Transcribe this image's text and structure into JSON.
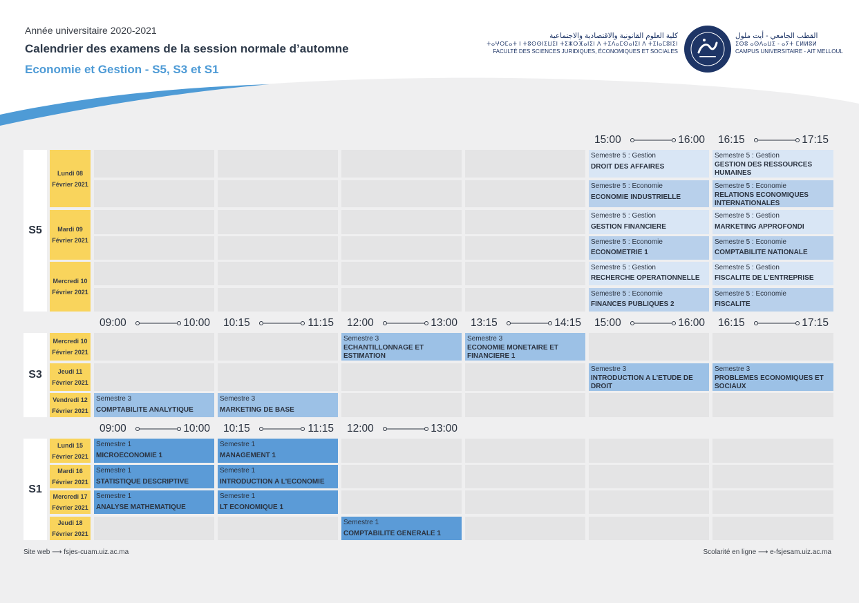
{
  "header": {
    "year": "Année universitaire 2020-2021",
    "title": "Calendrier des examens de la session normale d’automne",
    "subtitle": "Economie et Gestion - S5, S3 et S1"
  },
  "logo": {
    "faculty_ar": "كلية العلوم القانونية والاقتصادية والاجتماعية",
    "faculty_tif": "ⵜⴰⵖⵔⵎⴰⵜ ⵏ ⵜⵓⵙⵙⵏⵉⵡⵉⵏ ⵜⵉⵣⵔⴼⴰⵏⵉⵏ ⴷ ⵜⵉⴷⴰⵎⵙⴰⵏⵉⵏ ⴷ ⵜⵉⵏⴰⵎⵓⵏⵉⵏ",
    "faculty_fr": "FACULTÉ DES SCIENCES JURIDIQUES, ÉCONOMIQUES ET SOCIALES",
    "campus_ar": "القطب الجامعي - أيت ملول",
    "campus_tif": "ⵉⵙⵓ ⴰⵙⴷⴰⵡⵉ - ⴰⵢⵜ ⵎⵍⵍⵓⵍ",
    "campus_fr": "CAMPUS UNIVERSITAIRE - AIT MELLOUL",
    "colors": {
      "primary": "#1e3566",
      "accent": "#4e9bd6"
    }
  },
  "timebars": {
    "s5": [
      {
        "start": "15:00",
        "end": "16:00"
      },
      {
        "start": "16:15",
        "end": "17:15"
      }
    ],
    "s3": [
      {
        "start": "09:00",
        "end": "10:00"
      },
      {
        "start": "10:15",
        "end": "11:15"
      },
      {
        "start": "12:00",
        "end": "13:00"
      },
      {
        "start": "13:15",
        "end": "14:15"
      },
      {
        "start": "15:00",
        "end": "16:00"
      },
      {
        "start": "16:15",
        "end": "17:15"
      }
    ],
    "s1": [
      {
        "start": "09:00",
        "end": "10:00"
      },
      {
        "start": "10:15",
        "end": "11:15"
      },
      {
        "start": "12:00",
        "end": "13:00"
      }
    ]
  },
  "sections": {
    "s5": {
      "label": "S5",
      "days": [
        {
          "line1": "Lundi 08",
          "line2": "Février 2021"
        },
        {
          "line1": "Mardi 09",
          "line2": "Février 2021"
        },
        {
          "line1": "Mercredi 10",
          "line2": "Février 2021"
        }
      ],
      "exams": [
        {
          "semester": "Semestre 5 : Gestion",
          "name": "DROIT DES AFFAIRES"
        },
        {
          "semester": "Semestre 5 : Gestion",
          "name": "GESTION DES RESSOURCES HUMAINES"
        },
        {
          "semester": "Semestre 5 : Economie",
          "name": "ECONOMIE INDUSTRIELLE"
        },
        {
          "semester": "Semestre 5 : Economie",
          "name": "RELATIONS ECONOMIQUES INTERNATIONALES"
        },
        {
          "semester": "Semestre 5 : Gestion",
          "name": "GESTION FINANCIERE"
        },
        {
          "semester": "Semestre 5 : Gestion",
          "name": "MARKETING APPROFONDI"
        },
        {
          "semester": "Semestre 5 : Economie",
          "name": "ECONOMETRIE 1"
        },
        {
          "semester": "Semestre 5 : Economie",
          "name": "COMPTABILITE NATIONALE"
        },
        {
          "semester": "Semestre 5 : Gestion",
          "name": "RECHERCHE OPERATIONNELLE"
        },
        {
          "semester": "Semestre 5 : Gestion",
          "name": "FISCALITE DE L'ENTREPRISE"
        },
        {
          "semester": "Semestre 5 : Economie",
          "name": "FINANCES PUBLIQUES 2"
        },
        {
          "semester": "Semestre 5 : Economie",
          "name": "FISCALITE"
        }
      ]
    },
    "s3": {
      "label": "S3",
      "days": [
        {
          "line1": "Mercredi 10",
          "line2": "Février 2021"
        },
        {
          "line1": "Jeudi 11",
          "line2": "Février 2021"
        },
        {
          "line1": "Vendredi 12",
          "line2": "Février 2021"
        }
      ],
      "exams": [
        {
          "semester": "Semestre 3",
          "name": "ECHANTILLONNAGE ET ESTIMATION"
        },
        {
          "semester": "Semestre 3",
          "name": "ECONOMIE MONETAIRE ET FINANCIERE 1"
        },
        {
          "semester": "Semestre 3",
          "name": "INTRODUCTION A L'ETUDE DE DROIT"
        },
        {
          "semester": "Semestre 3",
          "name": "PROBLEMES ECONOMIQUES ET SOCIAUX"
        },
        {
          "semester": "Semestre 3",
          "name": "COMPTABILITE ANALYTIQUE"
        },
        {
          "semester": "Semestre 3",
          "name": "MARKETING DE BASE"
        }
      ]
    },
    "s1": {
      "label": "S1",
      "days": [
        {
          "line1": "Lundi 15",
          "line2": "Février 2021"
        },
        {
          "line1": "Mardi 16",
          "line2": "Février 2021"
        },
        {
          "line1": "Mercredi 17",
          "line2": "Février 2021"
        },
        {
          "line1": "Jeudi 18",
          "line2": "Février 2021"
        }
      ],
      "exams": [
        {
          "semester": "Semestre 1",
          "name": "MICROECONOMIE 1"
        },
        {
          "semester": "Semestre 1",
          "name": "MANAGEMENT 1"
        },
        {
          "semester": "Semestre 1",
          "name": "STATISTIQUE DESCRIPTIVE"
        },
        {
          "semester": "Semestre 1",
          "name": "INTRODUCTION A L'ECONOMIE"
        },
        {
          "semester": "Semestre 1",
          "name": "ANALYSE MATHEMATIQUE"
        },
        {
          "semester": "Semestre 1",
          "name": "LT ECONOMIQUE 1"
        },
        {
          "semester": "Semestre 1",
          "name": "COMPTABILITE GENERALE 1"
        }
      ]
    }
  },
  "colors": {
    "day_bg": "#f9d45c",
    "s5_gestion": "#d9e6f5",
    "s5_economie": "#b8d0eb",
    "s3": "#9cc1e6",
    "s1": "#5b9bd7",
    "empty": "#e4e4e5"
  },
  "footer": {
    "left": "Site web ⟶ fsjes-cuam.uiz.ac.ma",
    "right": "Scolarité en ligne ⟶ e-fsjesam.uiz.ac.ma"
  }
}
